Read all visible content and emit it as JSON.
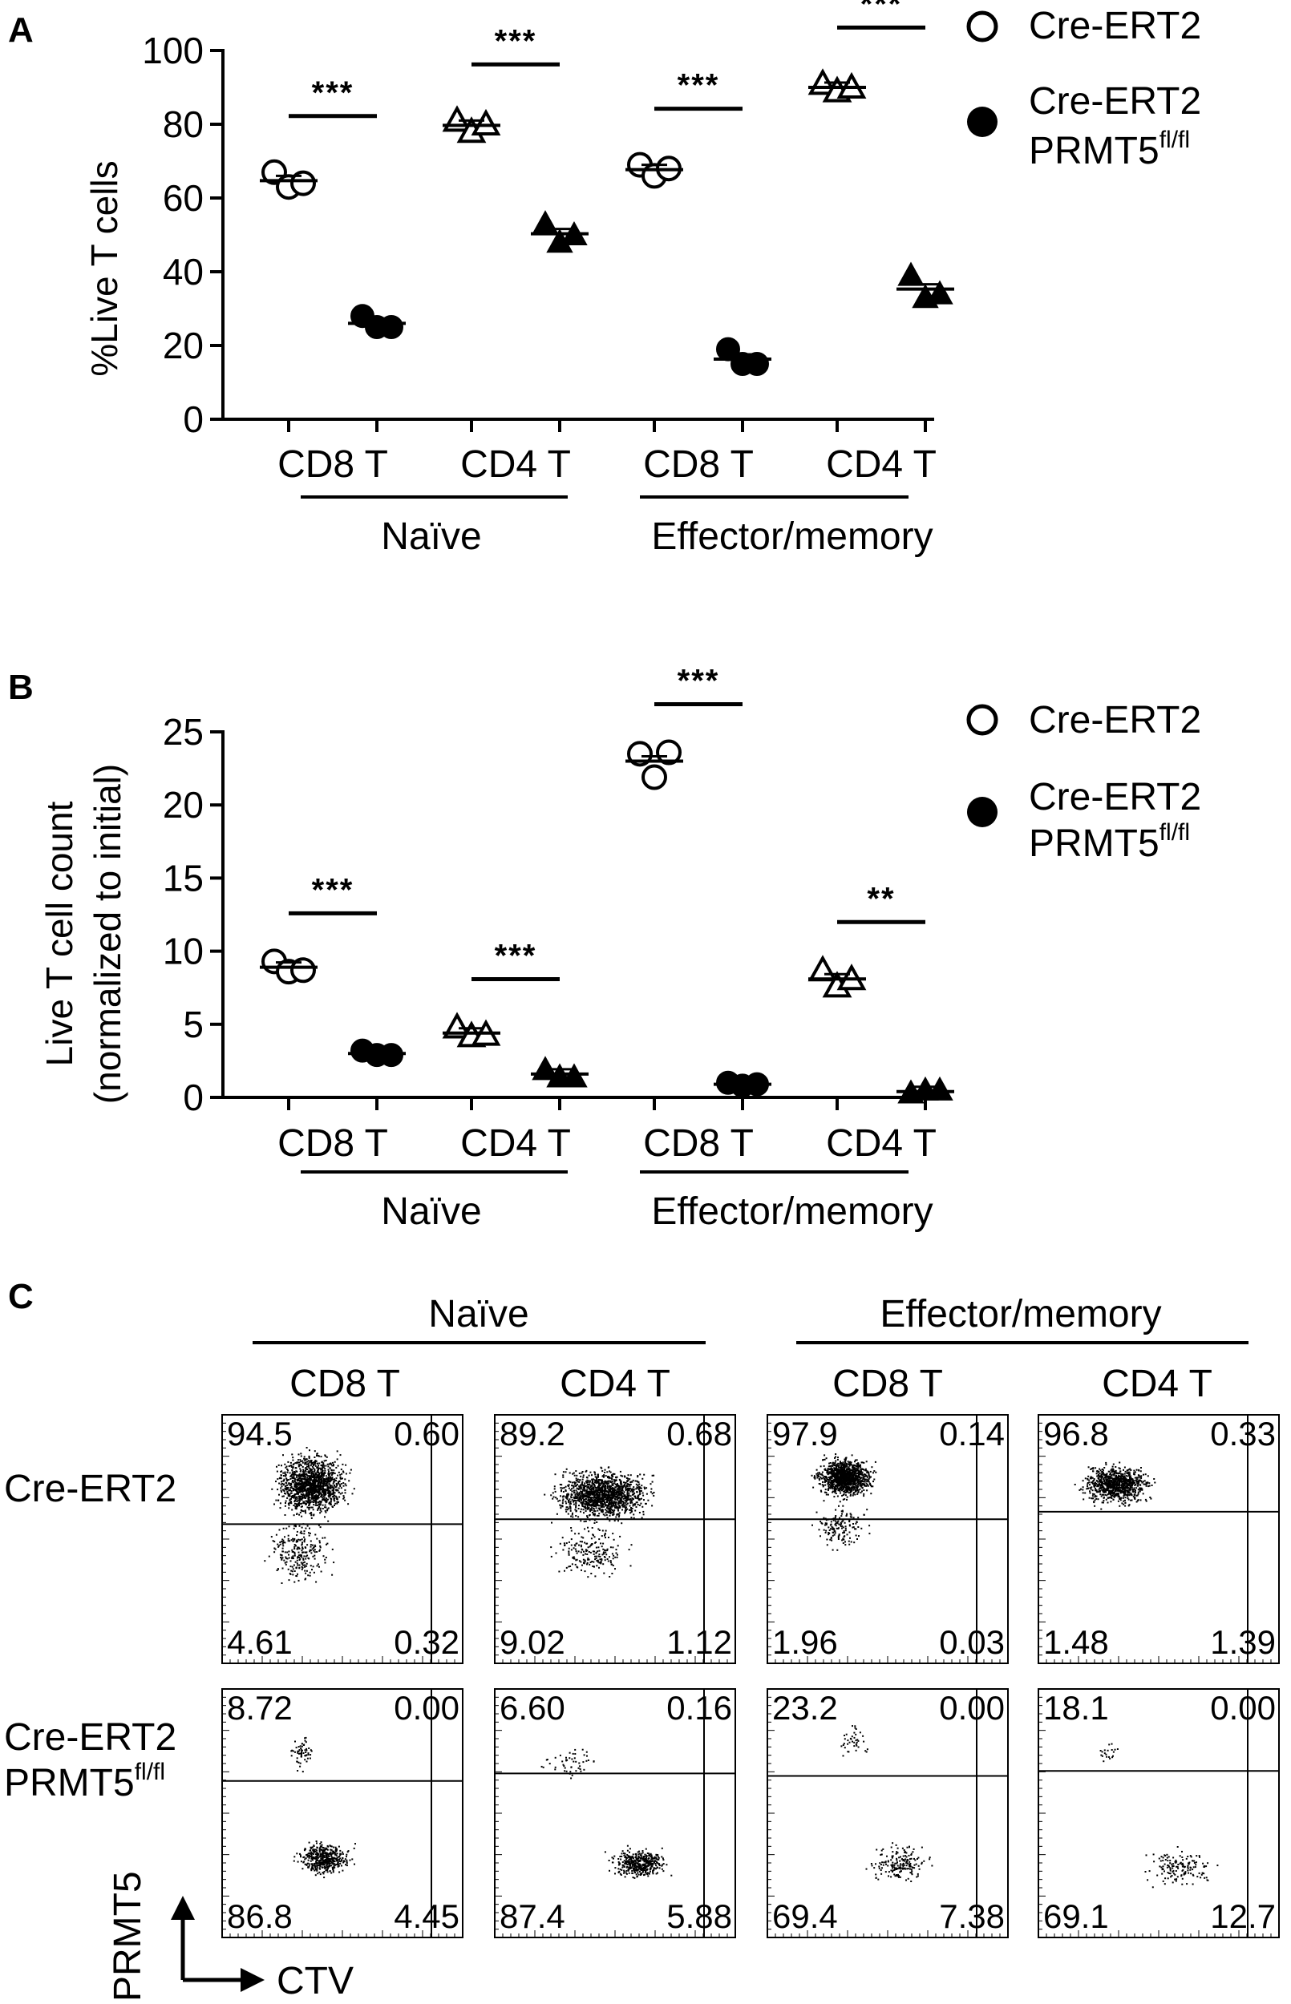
{
  "panels": {
    "a": "A",
    "b": "B",
    "c": "C"
  },
  "legend": {
    "item1": "Cre-ERT2",
    "item2_line1": "Cre-ERT2",
    "item2_line2": "PRMT5",
    "item2_sup": "fl/fl"
  },
  "groups": {
    "naive": "Naïve",
    "effector": "Effector/memory"
  },
  "chart_data": [
    {
      "type": "scatter",
      "panel": "A",
      "ylabel": "%Live T cells",
      "ylim": [
        0,
        100
      ],
      "yticks": [
        "0",
        "20",
        "40",
        "60",
        "80",
        "100"
      ],
      "categories": [
        "CD8 T",
        "CD4 T",
        "CD8 T",
        "CD4 T"
      ],
      "category_groups": [
        "Naïve",
        "Naïve",
        "Effector/memory",
        "Effector/memory"
      ],
      "series": [
        {
          "name": "Cre-ERT2",
          "values": [
            [
              67,
              63,
              64
            ],
            [
              81,
              78,
              80
            ],
            [
              69,
              66,
              68
            ],
            [
              91,
              89,
              90
            ]
          ],
          "means": [
            64.7,
            79.7,
            67.7,
            90
          ]
        },
        {
          "name": "Cre-ERT2 PRMT5fl/fl",
          "values": [
            [
              28,
              25,
              25
            ],
            [
              53,
              48,
              50
            ],
            [
              19,
              15,
              15
            ],
            [
              39,
              33,
              34
            ]
          ],
          "means": [
            26,
            50.3,
            16.3,
            35.3
          ]
        }
      ],
      "significance": [
        "***",
        "***",
        "***",
        "***"
      ]
    },
    {
      "type": "scatter",
      "panel": "B",
      "ylabel": "Live T cell count",
      "ylabel2": "(normalized to initial)",
      "ylim": [
        0,
        25
      ],
      "yticks": [
        "0",
        "5",
        "10",
        "15",
        "20",
        "25"
      ],
      "categories": [
        "CD8 T",
        "CD4 T",
        "CD8 T",
        "CD4 T"
      ],
      "category_groups": [
        "Naïve",
        "Naïve",
        "Effector/memory",
        "Effector/memory"
      ],
      "series": [
        {
          "name": "Cre-ERT2",
          "values": [
            [
              9.3,
              8.6,
              8.7
            ],
            [
              4.8,
              4.2,
              4.3
            ],
            [
              23.5,
              21.9,
              23.6
            ],
            [
              8.7,
              7.6,
              8.1
            ]
          ],
          "means": [
            8.9,
            4.4,
            23.0,
            8.1
          ]
        },
        {
          "name": "Cre-ERT2 PRMT5fl/fl",
          "values": [
            [
              3.2,
              2.9,
              2.9
            ],
            [
              1.9,
              1.4,
              1.4
            ],
            [
              1.0,
              0.8,
              0.9
            ],
            [
              0.3,
              0.5,
              0.5
            ]
          ],
          "means": [
            3.0,
            1.6,
            0.9,
            0.4
          ]
        }
      ],
      "significance": [
        "***",
        "***",
        "***",
        "**"
      ]
    }
  ],
  "flow": {
    "groups": [
      "Naïve",
      "Effector/memory"
    ],
    "columns": [
      "CD8 T",
      "CD4 T",
      "CD8 T",
      "CD4 T"
    ],
    "rows": [
      "Cre-ERT2",
      "Cre-ERT2",
      "PRMT5",
      "fl/fl"
    ],
    "row_labels": {
      "row1": "Cre-ERT2",
      "row2_line1": "Cre-ERT2",
      "row2_line2": "PRMT5",
      "row2_sup": "fl/fl"
    },
    "quadrants": [
      [
        "94.5",
        "0.60",
        "4.61",
        "0.32"
      ],
      [
        "89.2",
        "0.68",
        "9.02",
        "1.12"
      ],
      [
        "97.9",
        "0.14",
        "1.96",
        "0.03"
      ],
      [
        "96.8",
        "0.33",
        "1.48",
        "1.39"
      ],
      [
        "8.72",
        "0.00",
        "86.8",
        "4.45"
      ],
      [
        "6.60",
        "0.16",
        "87.4",
        "5.88"
      ],
      [
        "23.2",
        "0.00",
        "69.4",
        "7.38"
      ],
      [
        "18.1",
        "0.00",
        "69.1",
        "12.7"
      ]
    ],
    "y_axis": "PRMT5",
    "x_axis": "CTV"
  }
}
